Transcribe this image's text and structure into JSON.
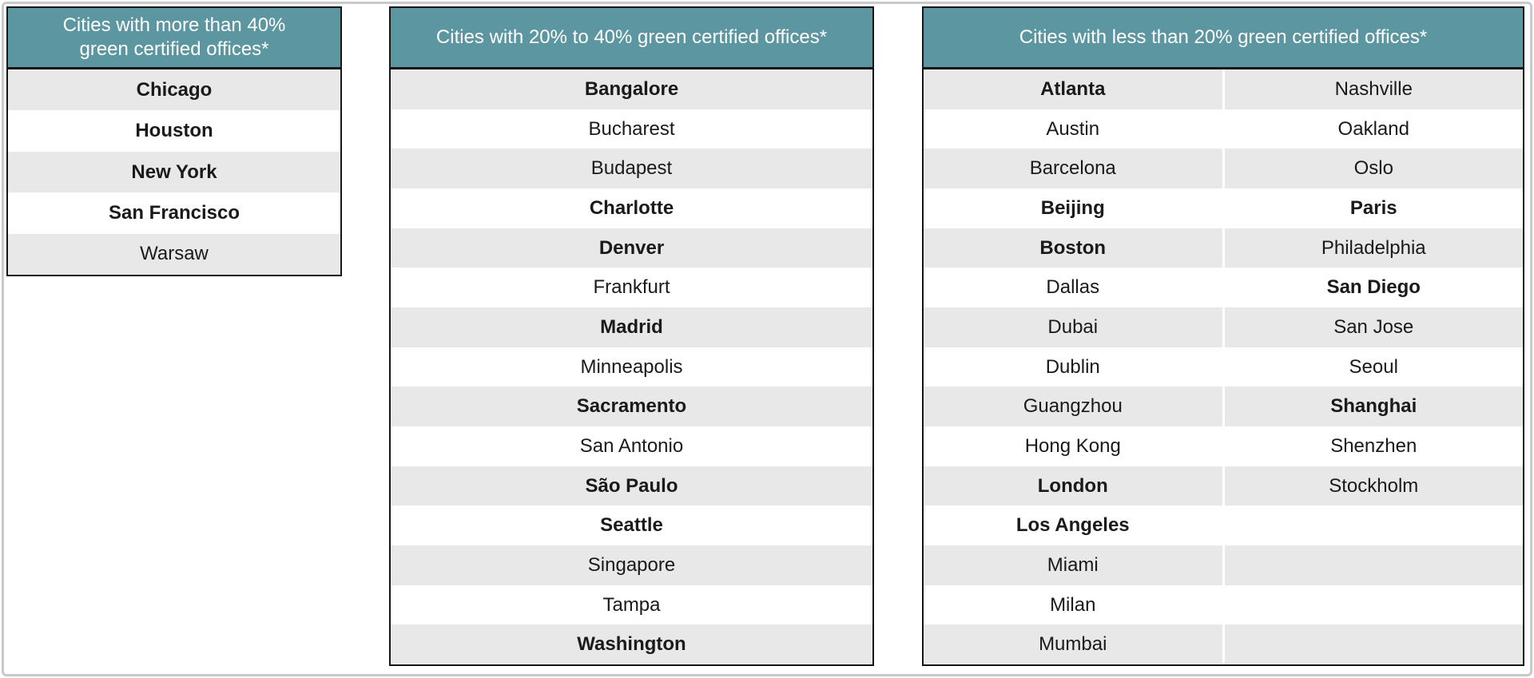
{
  "colors": {
    "header_bg": "#5c96a1",
    "header_text": "#ffffff",
    "row_alt_bg": "#e8e8e8",
    "row_bg": "#ffffff",
    "table_border": "#161616",
    "city_text": "#1a1a1a",
    "page_frame": "#c9c9c9"
  },
  "tables": [
    {
      "title": "Cities with more than 40% green certified offices*",
      "rows": [
        [
          {
            "name": "Chicago",
            "bold": true
          }
        ],
        [
          {
            "name": "Houston",
            "bold": true
          }
        ],
        [
          {
            "name": "New York",
            "bold": true
          }
        ],
        [
          {
            "name": "San Francisco",
            "bold": true
          }
        ],
        [
          {
            "name": "Warsaw",
            "bold": false
          }
        ]
      ]
    },
    {
      "title": "Cities with 20% to 40% green certified offices*",
      "rows": [
        [
          {
            "name": "Bangalore",
            "bold": true
          }
        ],
        [
          {
            "name": "Bucharest",
            "bold": false
          }
        ],
        [
          {
            "name": "Budapest",
            "bold": false
          }
        ],
        [
          {
            "name": "Charlotte",
            "bold": true
          }
        ],
        [
          {
            "name": "Denver",
            "bold": true
          }
        ],
        [
          {
            "name": "Frankfurt",
            "bold": false
          }
        ],
        [
          {
            "name": "Madrid",
            "bold": true
          }
        ],
        [
          {
            "name": "Minneapolis",
            "bold": false
          }
        ],
        [
          {
            "name": "Sacramento",
            "bold": true
          }
        ],
        [
          {
            "name": "San Antonio",
            "bold": false
          }
        ],
        [
          {
            "name": "São Paulo",
            "bold": true
          }
        ],
        [
          {
            "name": "Seattle",
            "bold": true
          }
        ],
        [
          {
            "name": "Singapore",
            "bold": false
          }
        ],
        [
          {
            "name": "Tampa",
            "bold": false
          }
        ],
        [
          {
            "name": "Washington",
            "bold": true
          }
        ]
      ]
    },
    {
      "title": "Cities with less than 20% green certified offices*",
      "rows": [
        [
          {
            "name": "Atlanta",
            "bold": true
          },
          {
            "name": "Nashville",
            "bold": false
          }
        ],
        [
          {
            "name": "Austin",
            "bold": false
          },
          {
            "name": "Oakland",
            "bold": false
          }
        ],
        [
          {
            "name": "Barcelona",
            "bold": false
          },
          {
            "name": "Oslo",
            "bold": false
          }
        ],
        [
          {
            "name": "Beijing",
            "bold": true
          },
          {
            "name": "Paris",
            "bold": true
          }
        ],
        [
          {
            "name": "Boston",
            "bold": true
          },
          {
            "name": "Philadelphia",
            "bold": false
          }
        ],
        [
          {
            "name": "Dallas",
            "bold": false
          },
          {
            "name": "San Diego",
            "bold": true
          }
        ],
        [
          {
            "name": "Dubai",
            "bold": false
          },
          {
            "name": "San Jose",
            "bold": false
          }
        ],
        [
          {
            "name": "Dublin",
            "bold": false
          },
          {
            "name": "Seoul",
            "bold": false
          }
        ],
        [
          {
            "name": "Guangzhou",
            "bold": false
          },
          {
            "name": "Shanghai",
            "bold": true
          }
        ],
        [
          {
            "name": "Hong Kong",
            "bold": false
          },
          {
            "name": "Shenzhen",
            "bold": false
          }
        ],
        [
          {
            "name": "London",
            "bold": true
          },
          {
            "name": "Stockholm",
            "bold": false
          }
        ],
        [
          {
            "name": "Los Angeles",
            "bold": true
          },
          null
        ],
        [
          {
            "name": "Miami",
            "bold": false
          },
          null
        ],
        [
          {
            "name": "Milan",
            "bold": false
          },
          null
        ],
        [
          {
            "name": "Mumbai",
            "bold": false
          },
          null
        ]
      ]
    }
  ]
}
